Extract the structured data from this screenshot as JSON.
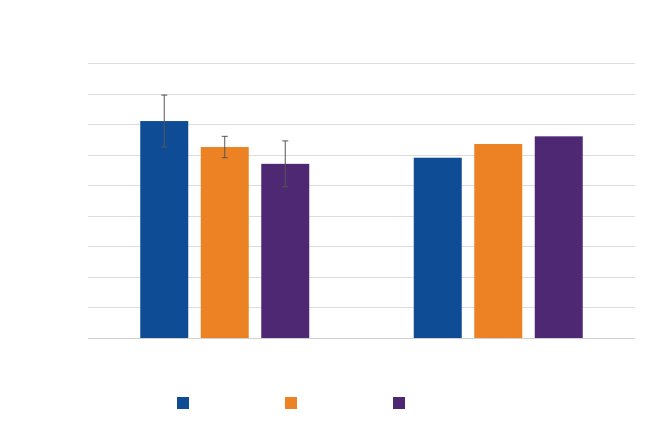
{
  "chart_data": {
    "type": "bar",
    "title": "",
    "xlabel": "",
    "ylabel": "",
    "categories": [
      "",
      ""
    ],
    "ylim": [
      0,
      9
    ],
    "ytick_count": 10,
    "grid": true,
    "legend_position": "bottom",
    "series": [
      {
        "color": "#0f4c96",
        "values": [
          7.1,
          5.9
        ],
        "error": [
          0.85,
          null
        ]
      },
      {
        "color": "#ed8224",
        "values": [
          6.25,
          6.35
        ],
        "error": [
          0.35,
          null
        ]
      },
      {
        "color": "#4f2873",
        "values": [
          5.7,
          6.6
        ],
        "error": [
          0.75,
          null
        ]
      }
    ]
  }
}
